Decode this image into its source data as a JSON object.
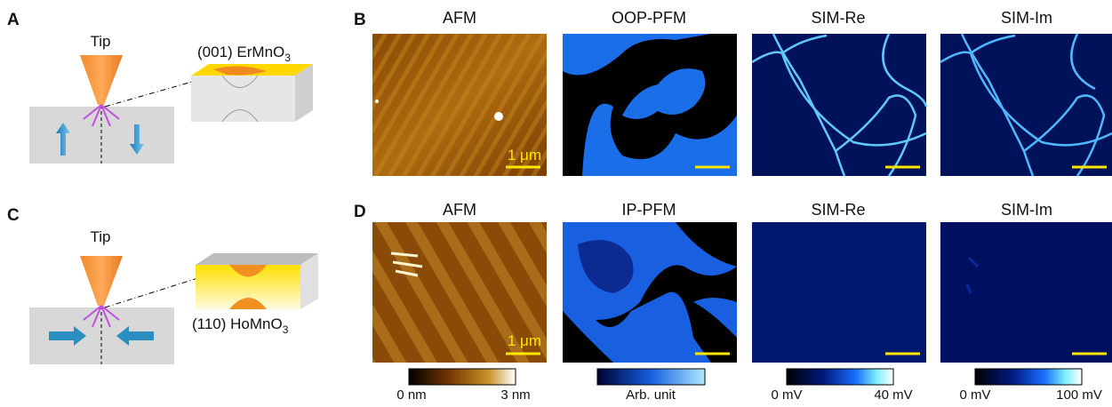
{
  "panels": {
    "A": {
      "letter": "A",
      "tip": "Tip",
      "sample": {
        "text": "(001) ErMnO",
        "sub": "3"
      }
    },
    "B": {
      "letter": "B",
      "images": [
        {
          "title": "AFM",
          "scale_label": "1 μm"
        },
        {
          "title": "OOP-PFM"
        },
        {
          "title": "SIM-Re"
        },
        {
          "title": "SIM-Im"
        }
      ]
    },
    "C": {
      "letter": "C",
      "tip": "Tip",
      "sample": {
        "text": "(110) HoMnO",
        "sub": "3"
      }
    },
    "D": {
      "letter": "D",
      "images": [
        {
          "title": "AFM",
          "scale_label": "1 μm"
        },
        {
          "title": "IP-PFM"
        },
        {
          "title": "SIM-Re"
        },
        {
          "title": "SIM-Im"
        }
      ]
    }
  },
  "colorbars": [
    {
      "min_label": "0 nm",
      "max_label": "3 nm"
    },
    {
      "label": "Arb. unit"
    },
    {
      "min_label": "0 mV",
      "max_label": "40 mV"
    },
    {
      "min_label": "0 mV",
      "max_label": "100 mV"
    }
  ]
}
